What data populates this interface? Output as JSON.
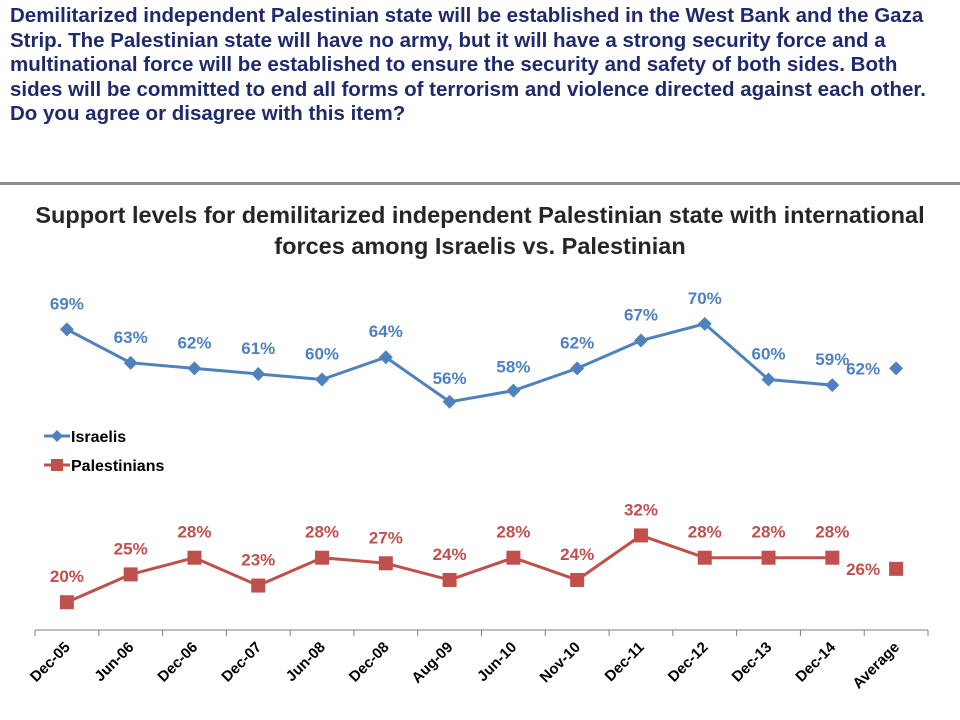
{
  "question": "Demilitarized independent Palestinian state will be established in the West Bank and the Gaza Strip. The Palestinian state will have no army, but it will have a strong security force and a multinational force will be established to ensure the security and safety of both sides. Both sides will be committed to end all forms of terrorism and violence directed against each other. Do you agree or disagree with this item?",
  "chart_data": {
    "type": "line",
    "title": "Support levels for demilitarized independent Palestinian state with international forces among Israelis vs. Palestinian",
    "categories": [
      "Dec-05",
      "Jun-06",
      "Dec-06",
      "Dec-07",
      "Jun-08",
      "Dec-08",
      "Aug-09",
      "Jun-10",
      "Nov-10",
      "Dec-11",
      "Dec-12",
      "Dec-13",
      "Dec-14"
    ],
    "average_category": "Average",
    "series": [
      {
        "name": "Israelis",
        "color": "#4f81bd",
        "marker": "diamond",
        "values": [
          69,
          63,
          62,
          61,
          60,
          64,
          56,
          58,
          62,
          67,
          70,
          60,
          59
        ],
        "average": 62
      },
      {
        "name": "Palestinians",
        "color": "#c0504d",
        "marker": "square",
        "values": [
          20,
          25,
          28,
          23,
          28,
          27,
          24,
          28,
          24,
          32,
          28,
          28,
          28
        ],
        "average": 26
      }
    ],
    "value_suffix": "%",
    "legend_position": "left-middle",
    "grid": false,
    "xlabel": "",
    "ylabel": ""
  }
}
